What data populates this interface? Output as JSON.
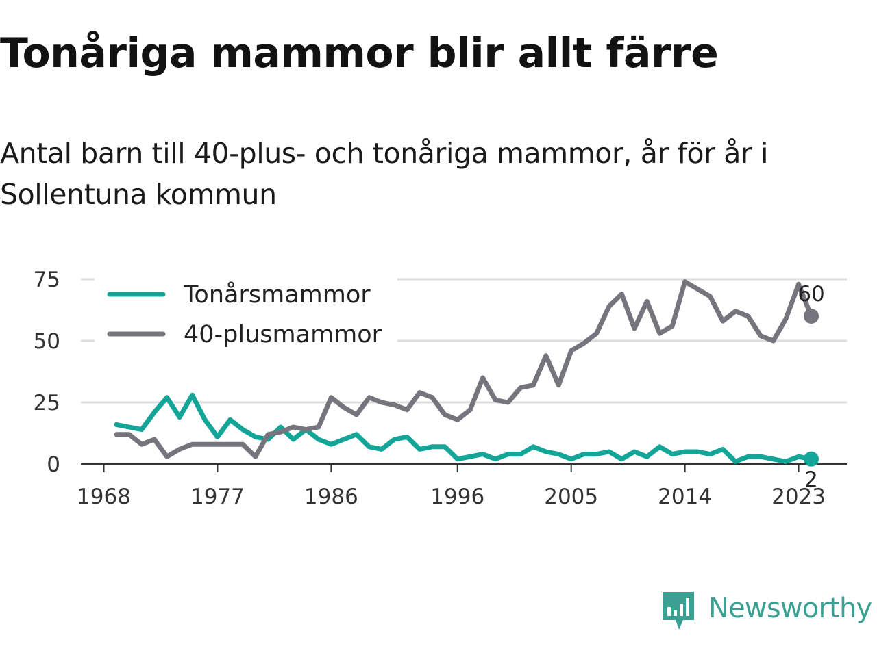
{
  "title": "Tonåriga mammor blir allt färre",
  "subtitle": "Antal barn till 40-plus- och tonåriga mammor, år för år i Sollentuna kommun",
  "brand": {
    "name": "Newsworthy",
    "icon": "newsworthy-bar-chart-icon",
    "color": "#3aa092"
  },
  "chart_data": {
    "type": "line",
    "xlim": [
      1967,
      2027
    ],
    "ylim": [
      0,
      75
    ],
    "x_ticks": [
      "1968",
      "1977",
      "1986",
      "1996",
      "2005",
      "2014",
      "2023"
    ],
    "y_ticks": [
      "0",
      "25",
      "50",
      "75"
    ],
    "grid": true,
    "legend": "top-left",
    "x": [
      1969,
      1970,
      1971,
      1972,
      1973,
      1974,
      1975,
      1976,
      1977,
      1978,
      1979,
      1980,
      1981,
      1982,
      1983,
      1984,
      1985,
      1986,
      1987,
      1988,
      1989,
      1990,
      1991,
      1992,
      1993,
      1994,
      1995,
      1996,
      1997,
      1998,
      1999,
      2000,
      2001,
      2002,
      2003,
      2004,
      2005,
      2006,
      2007,
      2008,
      2009,
      2010,
      2011,
      2012,
      2013,
      2014,
      2015,
      2016,
      2017,
      2018,
      2019,
      2020,
      2021,
      2022,
      2023,
      2024
    ],
    "series": [
      {
        "name": "Tonårsmammor",
        "color": "#13a597",
        "end_label": "2",
        "values": [
          16,
          15,
          14,
          21,
          27,
          19,
          28,
          18,
          11,
          18,
          14,
          11,
          10,
          15,
          10,
          14,
          10,
          8,
          10,
          12,
          7,
          6,
          10,
          11,
          6,
          7,
          7,
          2,
          3,
          4,
          2,
          4,
          4,
          7,
          5,
          4,
          2,
          4,
          4,
          5,
          2,
          5,
          3,
          7,
          4,
          5,
          5,
          4,
          6,
          1,
          3,
          3,
          2,
          1,
          3,
          2
        ]
      },
      {
        "name": "40-plusmammor",
        "color": "#76757d",
        "end_label": "60",
        "values": [
          12,
          12,
          8,
          10,
          3,
          6,
          8,
          8,
          8,
          8,
          8,
          3,
          12,
          13,
          15,
          14,
          15,
          27,
          23,
          20,
          27,
          25,
          24,
          22,
          29,
          27,
          20,
          18,
          22,
          35,
          26,
          25,
          31,
          32,
          44,
          32,
          46,
          49,
          53,
          64,
          69,
          55,
          66,
          53,
          56,
          74,
          71,
          68,
          58,
          62,
          60,
          52,
          50,
          59,
          73,
          60
        ]
      }
    ]
  }
}
